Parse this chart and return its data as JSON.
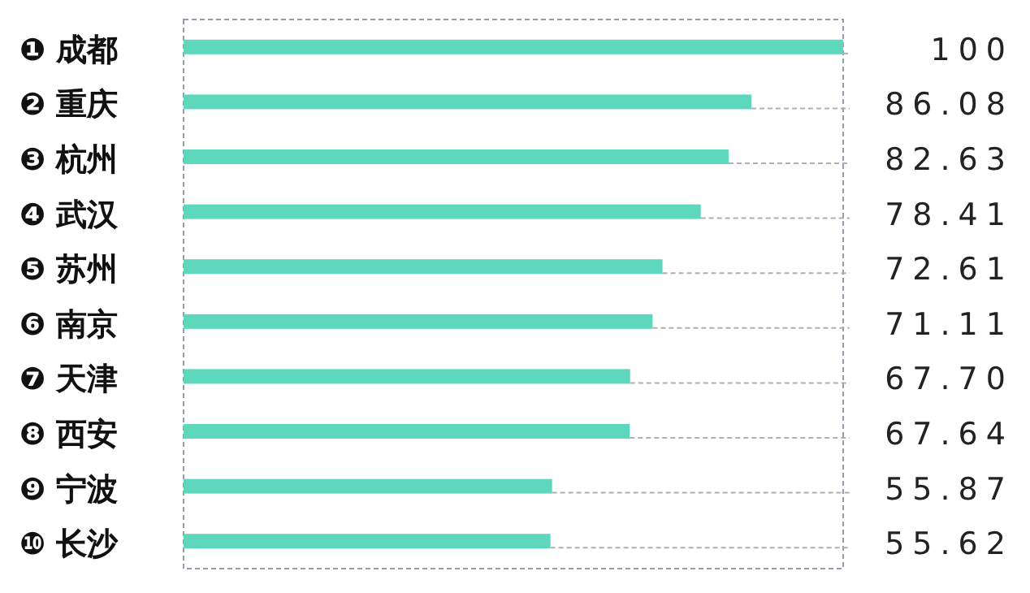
{
  "chart_data": {
    "type": "bar",
    "orientation": "horizontal",
    "categories": [
      "❶ 成都",
      "❷ 重庆",
      "❸ 杭州",
      "❹ 武汉",
      "❺ 苏州",
      "❻ 南京",
      "❼ 天津",
      "❽ 西安",
      "❾ 宁波",
      "❿ 长沙"
    ],
    "values": [
      100,
      86.08,
      82.63,
      78.41,
      72.61,
      71.11,
      67.7,
      67.64,
      55.87,
      55.62
    ],
    "value_labels": [
      "100",
      "86.08",
      "82.63",
      "78.41",
      "72.61",
      "71.11",
      "67.70",
      "67.64",
      "55.87",
      "55.62"
    ],
    "color": "#5ed8bc",
    "xlim": [
      0,
      100
    ]
  }
}
